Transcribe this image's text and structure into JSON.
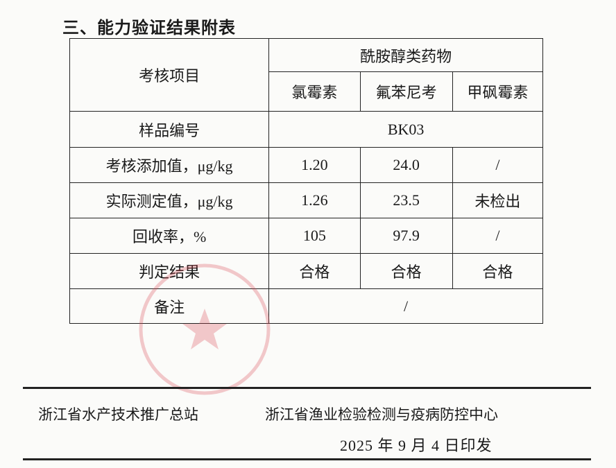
{
  "title": "三、能力验证结果附表",
  "table": {
    "item_header": "考核项目",
    "group_header": "酰胺醇类药物",
    "drugs": [
      "氯霉素",
      "氟苯尼考",
      "甲砜霉素"
    ],
    "sample_label": "样品编号",
    "sample_value": "BK03",
    "rows": [
      {
        "label": "考核添加值，μg/kg",
        "values": [
          "1.20",
          "24.0",
          "/"
        ]
      },
      {
        "label": "实际测定值，μg/kg",
        "values": [
          "1.26",
          "23.5",
          "未检出"
        ]
      },
      {
        "label": "回收率，%",
        "values": [
          "105",
          "97.9",
          "/"
        ]
      },
      {
        "label": "判定结果",
        "values": [
          "合格",
          "合格",
          "合格"
        ]
      }
    ],
    "remark_label": "备注",
    "remark_value": "/"
  },
  "footer": {
    "org1": "浙江省水产技术推广总站",
    "org2": "浙江省渔业检验检测与疫病防控中心",
    "date": "2025 年 9 月 4 日印发"
  },
  "stamp_color": "#d9434f"
}
